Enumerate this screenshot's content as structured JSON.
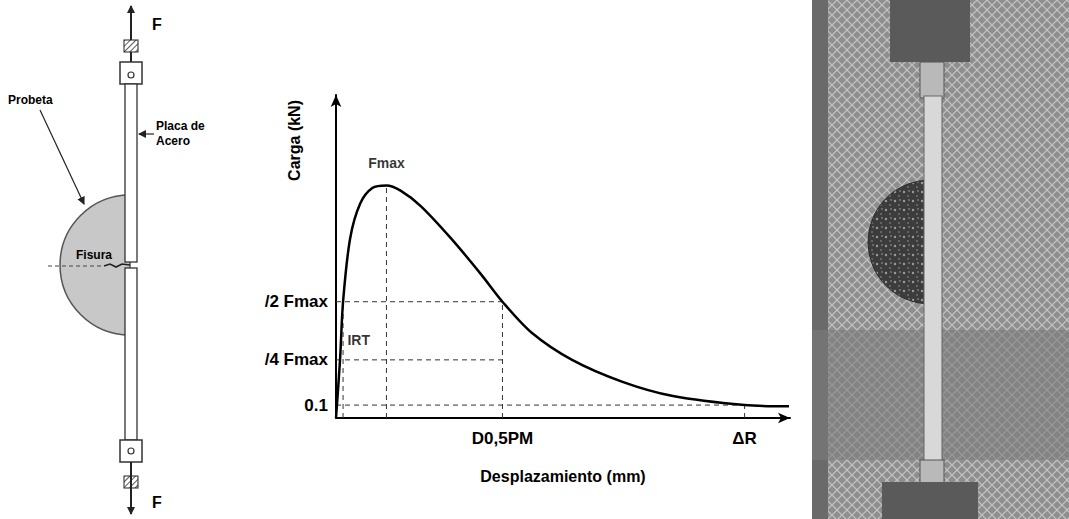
{
  "diagram": {
    "force_top": "F",
    "force_bottom": "F",
    "specimen": "Probeta",
    "plate": "Placa de Acero",
    "crack": "Fisura"
  },
  "chart_data": {
    "type": "line",
    "x_label": "Desplazamiento (mm)",
    "y_label": "Carga (kN)",
    "x": [
      0,
      0.08,
      0.14,
      0.28,
      0.48,
      0.72,
      1.0,
      1.28,
      1.68,
      2.28,
      2.88,
      3.3,
      3.88,
      4.68,
      5.68,
      6.68,
      8.1,
      8.98
    ],
    "values": [
      0,
      0.45,
      0.9,
      1.39,
      1.66,
      1.78,
      1.8,
      1.76,
      1.64,
      1.39,
      1.11,
      0.9,
      0.66,
      0.45,
      0.28,
      0.17,
      0.1,
      0.09
    ],
    "color": "#000000",
    "line_style": "solid",
    "grid": false,
    "xlim": [
      0,
      9
    ],
    "ylim": [
      0,
      2.5
    ],
    "xticks": [
      {
        "value": 3.3,
        "label": "D0,5PM"
      },
      {
        "value": 8.1,
        "label": "ΔR"
      }
    ],
    "yticks": [
      0.1,
      {
        "value": 0.45,
        "label": "/4 Fmax"
      },
      {
        "value": 0.9,
        "label": "/2 Fmax"
      }
    ],
    "reference_lines": [
      {
        "x": [
          0,
          3.3
        ],
        "y": [
          0.9,
          0.9
        ]
      },
      {
        "x": [
          0,
          3.3
        ],
        "y": [
          0.45,
          0.45
        ]
      },
      {
        "x": [
          0,
          8.1
        ],
        "y": [
          0.1,
          0.1
        ]
      },
      {
        "x": [
          1.0,
          1.0
        ],
        "y": [
          0,
          1.8
        ]
      },
      {
        "x": [
          3.3,
          3.3
        ],
        "y": [
          0,
          0.9
        ]
      },
      {
        "x": [
          0.14,
          0.14
        ],
        "y": [
          0,
          0.9
        ]
      },
      {
        "x": [
          8.1,
          8.1
        ],
        "y": [
          0,
          0.1
        ]
      }
    ],
    "annotations": [
      {
        "text": "Fmax",
        "x": 1.0,
        "y": 1.97
      },
      {
        "text": "IRT",
        "x": 0.45,
        "y": 0.6
      }
    ]
  }
}
